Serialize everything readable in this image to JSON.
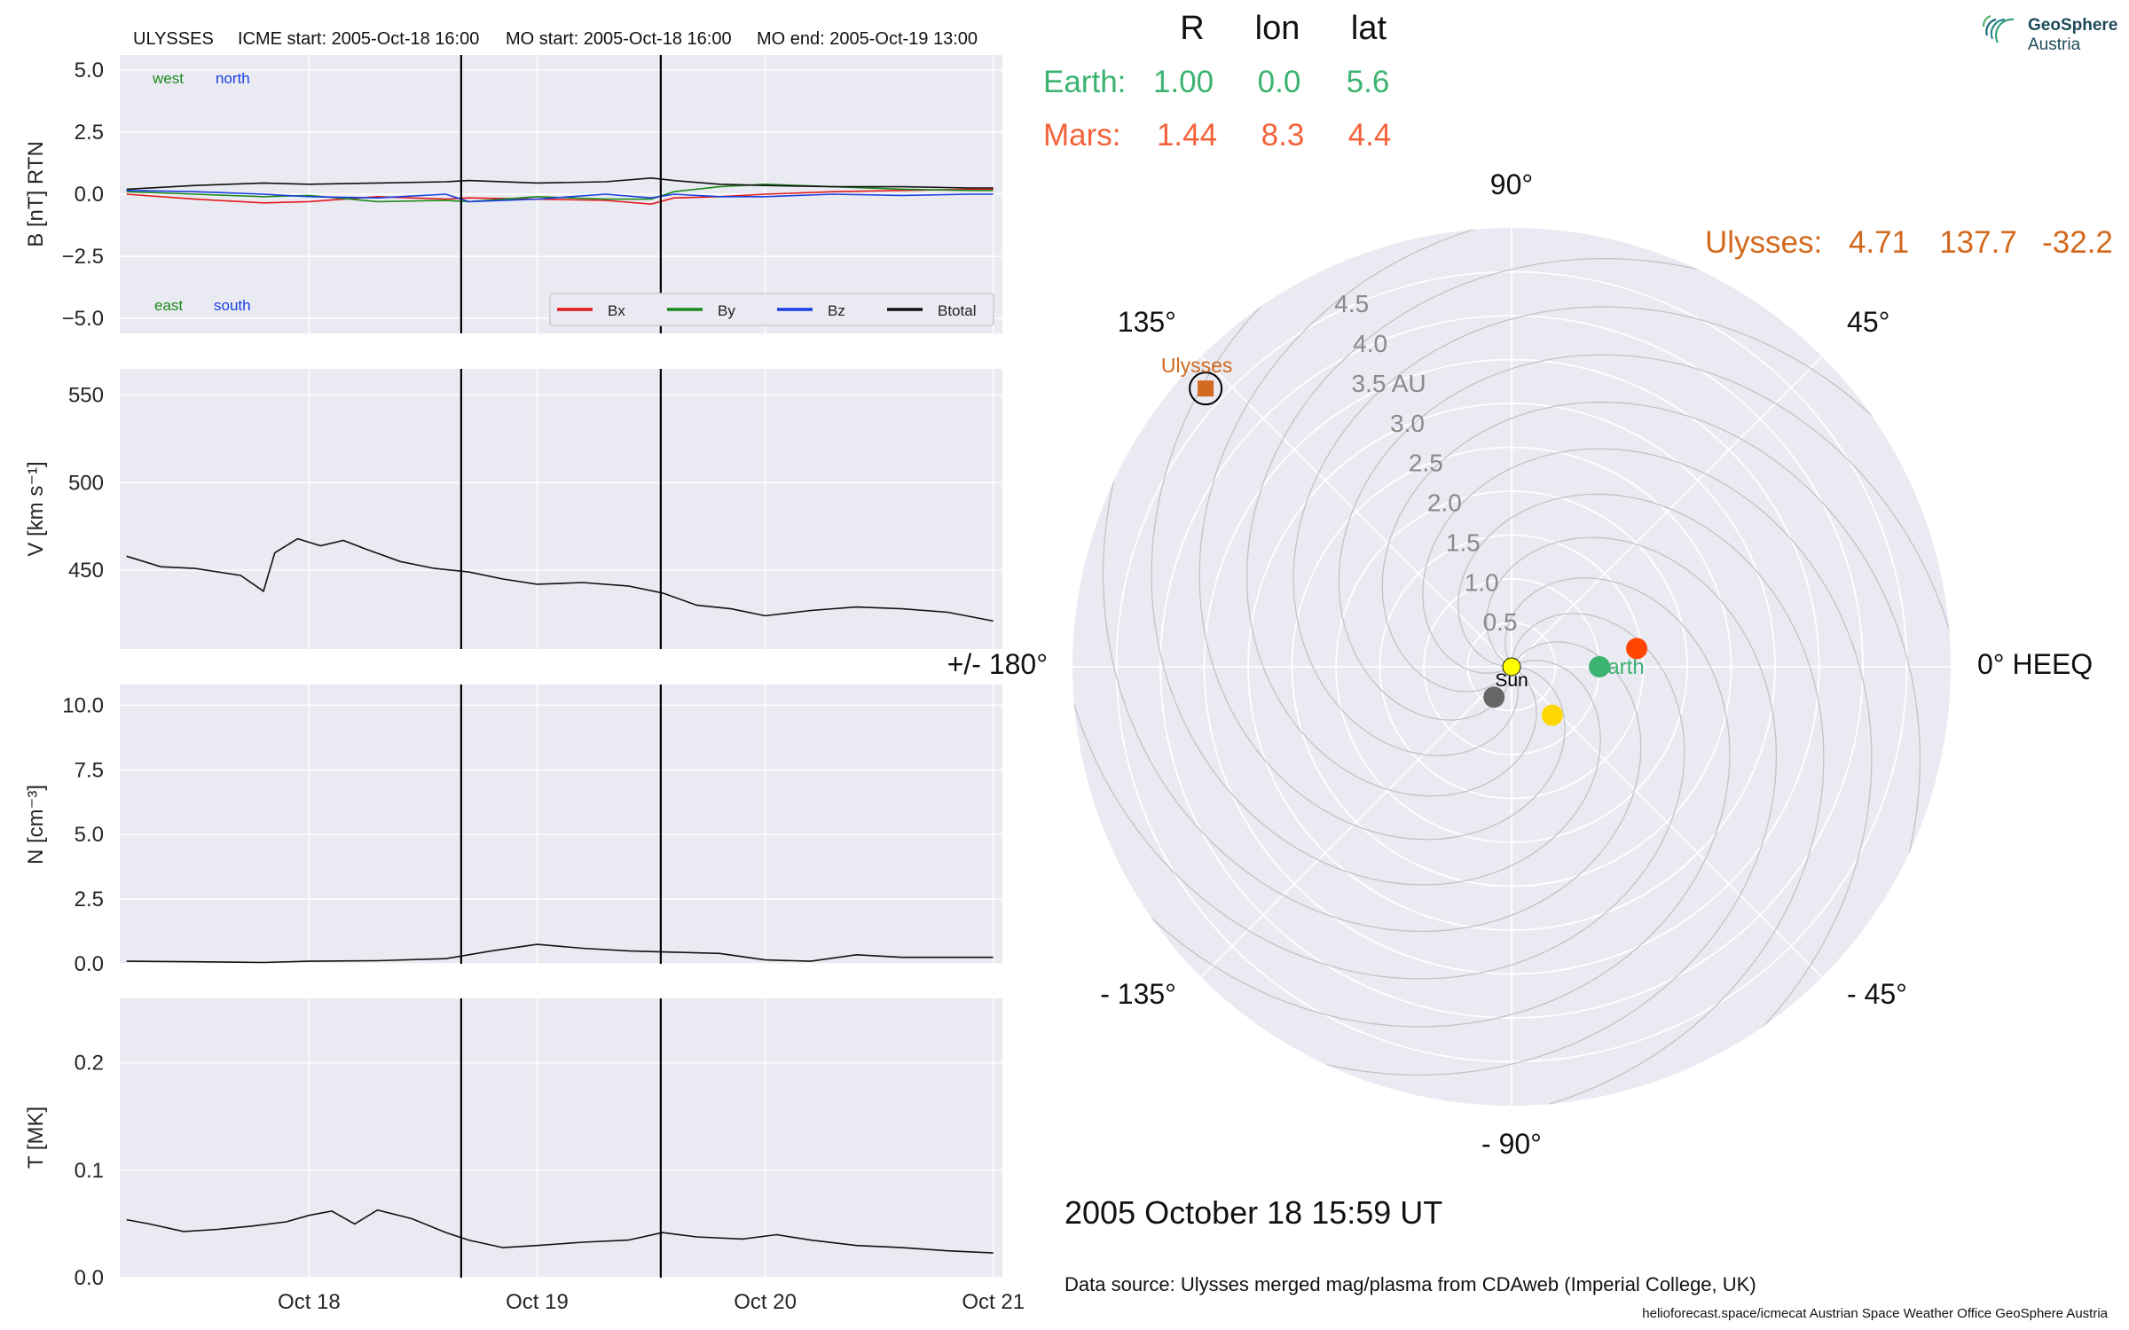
{
  "header": {
    "spacecraft": "ULYSSES",
    "icme_start": "ICME start: 2005-Oct-18 16:00",
    "mo_start": "MO start: 2005-Oct-18 16:00",
    "mo_end": "MO end: 2005-Oct-19 13:00"
  },
  "logo": {
    "line1": "GeoSphere",
    "line2": "Austria"
  },
  "colors": {
    "bx": "#e41a1c",
    "by": "#1a8a1a",
    "bz": "#1a3fe0",
    "btotal": "#111111",
    "earth": "#3cb371",
    "mars": "#f4623a",
    "ulysses": "#d2691e",
    "mercury": "#666666",
    "venus": "#ffd700",
    "mars_dot": "#ff4500",
    "sun": "#ffff00"
  },
  "positions_table": {
    "headers": [
      "R",
      "lon",
      "lat"
    ],
    "rows": [
      {
        "name": "Earth:",
        "R": "1.00",
        "lon": "0.0",
        "lat": "5.6"
      },
      {
        "name": "Mars:",
        "R": "1.44",
        "lon": "8.3",
        "lat": "4.4"
      }
    ],
    "ulysses": {
      "name": "Ulysses:",
      "R": "4.71",
      "lon": "137.7",
      "lat": "-32.2"
    }
  },
  "chart_data": [
    {
      "type": "line",
      "panel": "magnetic_field",
      "ylabel": "B [nT] RTN",
      "ylim": [
        -5.6,
        5.6
      ],
      "yticks": [
        "5.0",
        "2.5",
        "0.0",
        "−2.5",
        "−5.0"
      ],
      "ytick_values": [
        5.0,
        2.5,
        0.0,
        -2.5,
        -5.0
      ],
      "x_days": [
        17.2,
        17.5,
        17.8,
        18.0,
        18.3,
        18.6,
        18.7,
        19.0,
        19.3,
        19.5,
        19.6,
        19.8,
        20.0,
        20.3,
        20.6,
        20.9,
        21.0
      ],
      "annotations": {
        "west": "west",
        "north": "north",
        "east": "east",
        "south": "south"
      },
      "legend": [
        "Bx",
        "By",
        "Bz",
        "Btotal"
      ],
      "series": [
        {
          "name": "Bx",
          "values": [
            0.0,
            -0.2,
            -0.35,
            -0.3,
            -0.1,
            -0.2,
            -0.15,
            -0.2,
            -0.25,
            -0.4,
            -0.15,
            -0.1,
            0.0,
            0.1,
            0.15,
            0.2,
            0.2
          ]
        },
        {
          "name": "By",
          "values": [
            0.1,
            0.0,
            -0.1,
            -0.05,
            -0.3,
            -0.25,
            -0.3,
            -0.1,
            -0.2,
            -0.2,
            0.1,
            0.3,
            0.4,
            0.3,
            0.2,
            0.15,
            0.15
          ]
        },
        {
          "name": "Bz",
          "values": [
            0.15,
            0.1,
            0.0,
            -0.1,
            -0.15,
            0.0,
            -0.3,
            -0.2,
            0.0,
            -0.15,
            0.0,
            -0.1,
            -0.1,
            0.0,
            -0.05,
            0.0,
            0.0
          ]
        },
        {
          "name": "Btotal",
          "values": [
            0.2,
            0.35,
            0.45,
            0.4,
            0.45,
            0.5,
            0.55,
            0.45,
            0.5,
            0.65,
            0.55,
            0.4,
            0.35,
            0.3,
            0.3,
            0.25,
            0.25
          ]
        }
      ]
    },
    {
      "type": "line",
      "panel": "speed",
      "ylabel": "V [km s⁻¹]",
      "ylim": [
        405,
        565
      ],
      "yticks": [
        "550",
        "500",
        "450"
      ],
      "ytick_values": [
        550,
        500,
        450
      ],
      "x_days": [
        17.2,
        17.35,
        17.5,
        17.7,
        17.8,
        17.85,
        17.95,
        18.05,
        18.15,
        18.25,
        18.4,
        18.55,
        18.7,
        18.85,
        19.0,
        19.2,
        19.4,
        19.55,
        19.7,
        19.85,
        20.0,
        20.2,
        20.4,
        20.6,
        20.8,
        21.0
      ],
      "values": [
        458,
        452,
        451,
        447,
        438,
        460,
        468,
        464,
        467,
        462,
        455,
        451,
        449,
        445,
        442,
        443,
        441,
        437,
        430,
        428,
        424,
        427,
        429,
        428,
        426,
        421
      ],
      "series": [
        {
          "name": "",
          "values": []
        }
      ]
    },
    {
      "type": "line",
      "panel": "density",
      "ylabel": "N [cm⁻³]",
      "ylim": [
        0,
        10.8
      ],
      "yticks": [
        "10.0",
        "7.5",
        "5.0",
        "2.5",
        "0.0"
      ],
      "ytick_values": [
        10.0,
        7.5,
        5.0,
        2.5,
        0.0
      ],
      "x_days": [
        17.2,
        17.5,
        17.8,
        18.0,
        18.3,
        18.6,
        18.8,
        19.0,
        19.2,
        19.4,
        19.6,
        19.8,
        20.0,
        20.2,
        20.4,
        20.6,
        20.8,
        21.0
      ],
      "values": [
        0.1,
        0.08,
        0.05,
        0.1,
        0.12,
        0.2,
        0.5,
        0.75,
        0.6,
        0.5,
        0.45,
        0.4,
        0.15,
        0.1,
        0.35,
        0.25,
        0.25,
        0.25
      ]
    },
    {
      "type": "line",
      "panel": "temperature",
      "ylabel": "T [MK]",
      "ylim": [
        0,
        0.26
      ],
      "yticks": [
        "0.2",
        "0.1",
        "0.0"
      ],
      "ytick_values": [
        0.2,
        0.1,
        0.0
      ],
      "xticks": [
        "Oct 18",
        "Oct 19",
        "Oct 20",
        "Oct 21"
      ],
      "xtick_values": [
        18,
        19,
        20,
        21
      ],
      "xlim": [
        17.17,
        21.04
      ],
      "vlines": [
        18.667,
        19.542
      ],
      "x_days": [
        17.2,
        17.3,
        17.45,
        17.6,
        17.75,
        17.9,
        18.0,
        18.1,
        18.2,
        18.3,
        18.45,
        18.6,
        18.7,
        18.85,
        19.0,
        19.2,
        19.4,
        19.55,
        19.7,
        19.9,
        20.05,
        20.2,
        20.4,
        20.6,
        20.8,
        21.0
      ],
      "values": [
        0.054,
        0.05,
        0.043,
        0.045,
        0.048,
        0.052,
        0.058,
        0.062,
        0.05,
        0.063,
        0.055,
        0.042,
        0.035,
        0.028,
        0.03,
        0.033,
        0.035,
        0.042,
        0.038,
        0.036,
        0.04,
        0.035,
        0.03,
        0.028,
        0.025,
        0.023
      ]
    },
    {
      "type": "scatter",
      "panel": "polar_orbit_plot",
      "angle_labels": [
        "90°",
        "45°",
        "0° HEEQ",
        "- 45°",
        "- 90°",
        "- 135°",
        "+/- 180°",
        "135°"
      ],
      "radial_labels": [
        "0.5",
        "1.0",
        "1.5",
        "2.0",
        "2.5",
        "3.0",
        "3.5 AU",
        "4.0",
        "4.5"
      ],
      "rmax": 5.0,
      "bodies": [
        {
          "name": "Sun",
          "r": 0.0,
          "lon": 0.0,
          "label": "Sun"
        },
        {
          "name": "Earth",
          "r": 1.0,
          "lon": 0.0,
          "label": "Earth"
        },
        {
          "name": "Mars",
          "r": 1.44,
          "lon": 8.3,
          "label": ""
        },
        {
          "name": "Venus",
          "r": 0.72,
          "lon": -50.0,
          "label": ""
        },
        {
          "name": "Mercury",
          "r": 0.4,
          "lon": -120.0,
          "label": ""
        },
        {
          "name": "Ulysses",
          "r": 4.71,
          "lon": 137.7,
          "label": "Ulysses"
        }
      ]
    }
  ],
  "footer": {
    "timestamp": "2005 October 18  15:59 UT",
    "data_source": "Data source: Ulysses merged mag/plasma from CDAweb (Imperial College, UK)",
    "credits": "helioforecast.space/icmecat   Austrian Space Weather Office   GeoSphere Austria"
  }
}
